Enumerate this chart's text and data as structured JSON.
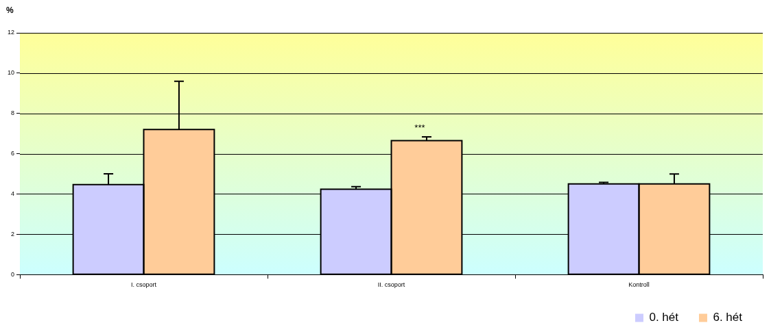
{
  "chart_data": {
    "type": "bar",
    "ylabel": "%",
    "categories": [
      "I. csoport",
      "II. csoport",
      "Kontroll"
    ],
    "series": [
      {
        "name": "0. hét",
        "color": "#ccccff",
        "values": [
          4.47,
          4.24,
          4.5
        ],
        "errors": [
          [
            4.47,
            5.0
          ],
          [
            4.24,
            4.36
          ],
          [
            4.5,
            4.58
          ]
        ]
      },
      {
        "name": "6. hét",
        "color": "#ffcc99",
        "values": [
          7.2,
          6.65,
          4.5
        ],
        "errors": [
          [
            7.2,
            9.6
          ],
          [
            6.65,
            6.84
          ],
          [
            4.5,
            4.99
          ]
        ]
      }
    ],
    "ylim": [
      0,
      12
    ],
    "yticks": [
      0,
      2,
      4,
      6,
      8,
      10,
      12
    ],
    "grid": "y",
    "legend": "bottom right",
    "annotations": [
      "***"
    ]
  }
}
